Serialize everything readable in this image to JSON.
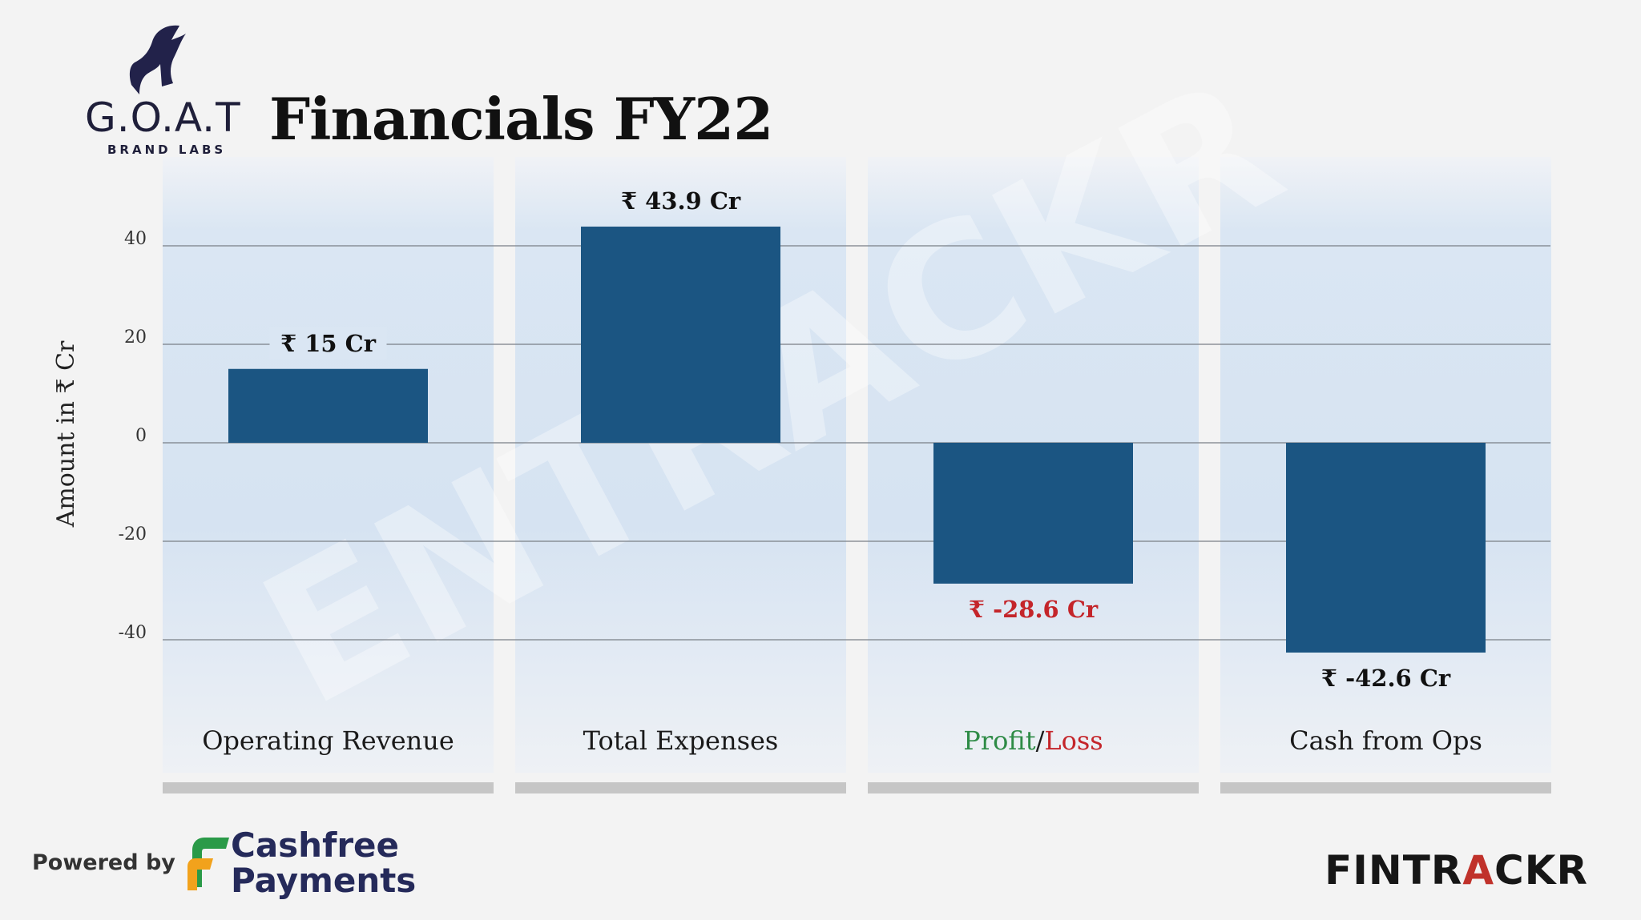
{
  "brand": {
    "name": "G.O.A.T",
    "subtitle": "BRAND LABS"
  },
  "title": "Financials FY22",
  "chart_data": {
    "type": "bar",
    "categories": [
      "Operating Revenue",
      "Total Expenses",
      "Profit/Loss",
      "Cash from Ops"
    ],
    "values": [
      15,
      43.9,
      -28.6,
      -42.6
    ],
    "data_labels": [
      "₹ 15 Cr",
      "₹ 43.9 Cr",
      "₹ -28.6 Cr",
      "₹ -42.6 Cr"
    ],
    "ylabel": "Amount in ₹ Cr",
    "yticks": [
      40,
      20,
      0,
      -20,
      -40
    ],
    "ylim": [
      -50,
      50
    ],
    "grid": true,
    "watermark": "ENTRACKR",
    "colors": {
      "bar": "#1b5582",
      "label_negative_profit": "#c4252a",
      "profit": "#2e8b46",
      "loss": "#c4252a"
    }
  },
  "footer": {
    "powered_by": "Powered by",
    "partner_line1": "Cashfree",
    "partner_line2": "Payments",
    "publisher_part1": "FINTR",
    "publisher_part2": "A",
    "publisher_part3": "CKR"
  }
}
